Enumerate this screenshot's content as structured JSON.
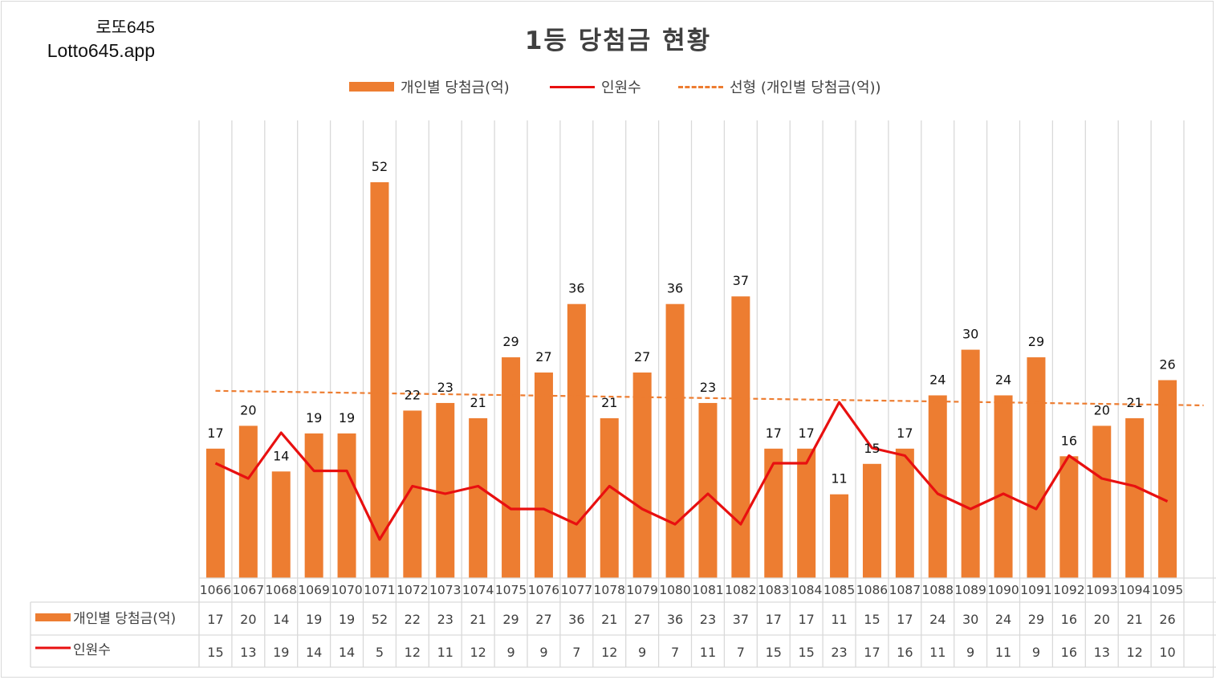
{
  "brand": {
    "line1": "로또645",
    "line2": "Lotto645.app"
  },
  "chart_data": {
    "type": "bar",
    "title": "1등 당첨금 현황",
    "categories": [
      "1066",
      "1067",
      "1068",
      "1069",
      "1070",
      "1071",
      "1072",
      "1073",
      "1074",
      "1075",
      "1076",
      "1077",
      "1078",
      "1079",
      "1080",
      "1081",
      "1082",
      "1083",
      "1084",
      "1085",
      "1086",
      "1087",
      "1088",
      "1089",
      "1090",
      "1091",
      "1092",
      "1093",
      "1094",
      "1095"
    ],
    "series": [
      {
        "name": "개인별 당첨금(억)",
        "kind": "bar",
        "color": "#ED7D31",
        "values": [
          17,
          20,
          14,
          19,
          19,
          52,
          22,
          23,
          21,
          29,
          27,
          36,
          21,
          27,
          36,
          23,
          37,
          17,
          17,
          11,
          15,
          17,
          24,
          30,
          24,
          29,
          16,
          20,
          21,
          26
        ]
      },
      {
        "name": "인원수",
        "kind": "line",
        "color": "#E81010",
        "values": [
          15,
          13,
          19,
          14,
          14,
          5,
          12,
          11,
          12,
          9,
          9,
          7,
          12,
          9,
          7,
          11,
          7,
          15,
          15,
          23,
          17,
          16,
          11,
          9,
          11,
          9,
          16,
          13,
          12,
          10
        ]
      }
    ],
    "trendline": {
      "name": "선형 (개인별 당첨금(억))",
      "color": "#ED7D31",
      "style": "dashed",
      "of_series": "개인별 당첨금(억)"
    },
    "ylim": [
      0,
      60
    ],
    "grid": "vertical",
    "legend": "top",
    "data_table": true
  }
}
